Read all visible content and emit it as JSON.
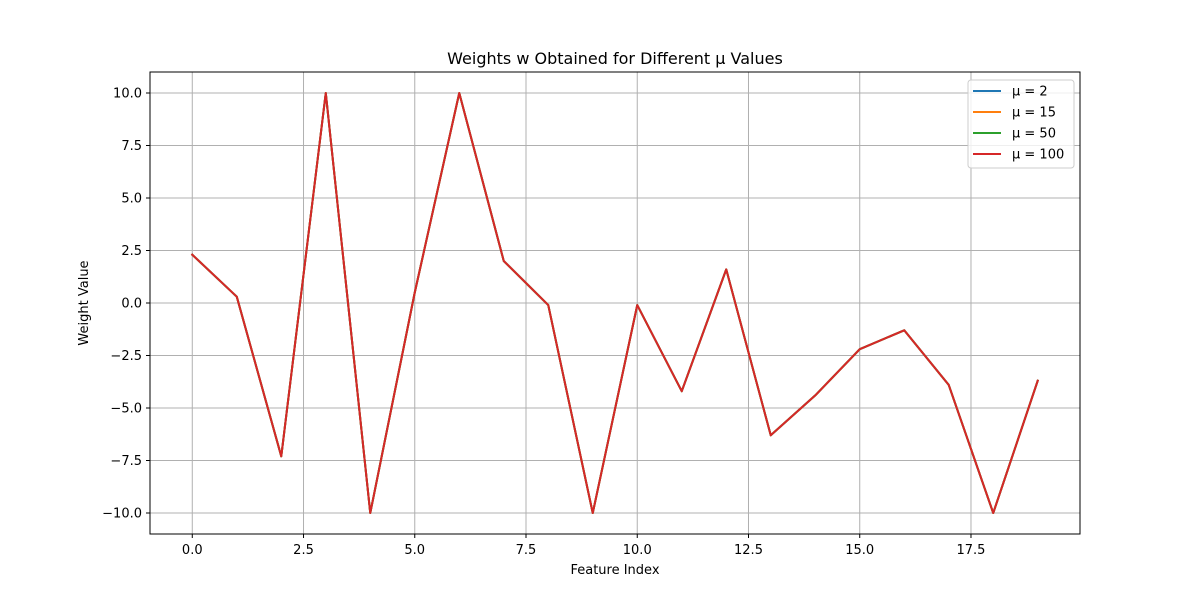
{
  "chart_data": {
    "type": "line",
    "title": "Weights w Obtained for Different μ Values",
    "xlabel": "Feature Index",
    "ylabel": "Weight Value",
    "xlim": [
      -0.95,
      19.95
    ],
    "ylim": [
      -11.0,
      11.0
    ],
    "xticks": [
      0.0,
      2.5,
      5.0,
      7.5,
      10.0,
      12.5,
      15.0,
      17.5
    ],
    "xtick_labels": [
      "0.0",
      "2.5",
      "5.0",
      "7.5",
      "10.0",
      "12.5",
      "15.0",
      "17.5"
    ],
    "yticks": [
      10.0,
      7.5,
      5.0,
      2.5,
      0.0,
      -2.5,
      -5.0,
      -7.5,
      -10.0
    ],
    "ytick_labels": [
      "10.0",
      "7.5",
      "5.0",
      "2.5",
      "0.0",
      "−2.5",
      "−5.0",
      "−7.5",
      "−10.0"
    ],
    "grid": true,
    "legend_position": "top-right",
    "x": [
      0,
      1,
      2,
      3,
      4,
      5,
      6,
      7,
      8,
      9,
      10,
      11,
      12,
      13,
      14,
      15,
      16,
      17,
      18,
      19
    ],
    "series": [
      {
        "name": "μ = 2",
        "color": "#1f77b4",
        "values": [
          2.3,
          0.3,
          -7.3,
          10.0,
          -10.0,
          0.5,
          10.0,
          2.0,
          -0.1,
          -10.0,
          -0.1,
          -4.2,
          1.6,
          -6.3,
          -4.4,
          -2.2,
          -1.3,
          -3.9,
          -10.0,
          -3.7
        ]
      },
      {
        "name": "μ = 15",
        "color": "#ff7f0e",
        "values": [
          2.3,
          0.3,
          -7.3,
          10.0,
          -10.0,
          0.5,
          10.0,
          2.0,
          -0.1,
          -10.0,
          -0.1,
          -4.2,
          1.6,
          -6.3,
          -4.4,
          -2.2,
          -1.3,
          -3.9,
          -10.0,
          -3.7
        ]
      },
      {
        "name": "μ = 50",
        "color": "#2ca02c",
        "values": [
          2.3,
          0.3,
          -7.3,
          10.0,
          -10.0,
          0.5,
          10.0,
          2.0,
          -0.1,
          -10.0,
          -0.1,
          -4.2,
          1.6,
          -6.3,
          -4.4,
          -2.2,
          -1.3,
          -3.9,
          -10.0,
          -3.7
        ]
      },
      {
        "name": "μ = 100",
        "color": "#d62728",
        "values": [
          2.3,
          0.3,
          -7.3,
          10.0,
          -10.0,
          0.5,
          10.0,
          2.0,
          -0.1,
          -10.0,
          -0.1,
          -4.2,
          1.6,
          -6.3,
          -4.4,
          -2.2,
          -1.3,
          -3.9,
          -10.0,
          -3.7
        ]
      }
    ]
  }
}
